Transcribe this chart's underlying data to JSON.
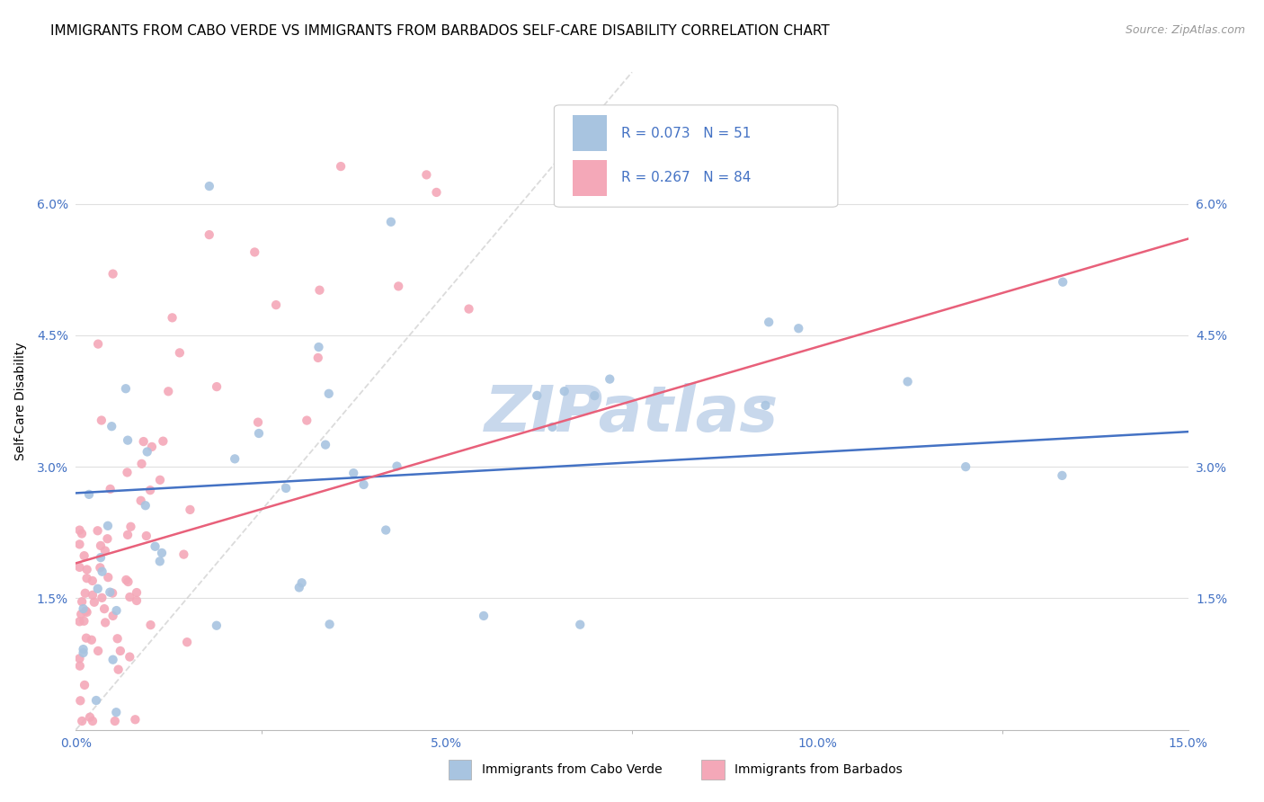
{
  "title": "IMMIGRANTS FROM CABO VERDE VS IMMIGRANTS FROM BARBADOS SELF-CARE DISABILITY CORRELATION CHART",
  "source": "Source: ZipAtlas.com",
  "ylabel": "Self-Care Disability",
  "xlim": [
    0,
    0.15
  ],
  "ylim": [
    0,
    0.075
  ],
  "cabo_verde_R": 0.073,
  "cabo_verde_N": 51,
  "barbados_R": 0.267,
  "barbados_N": 84,
  "cabo_verde_color": "#a8c4e0",
  "barbados_color": "#f4a8b8",
  "cabo_verde_line_color": "#4472c4",
  "barbados_line_color": "#e8607a",
  "diagonal_color": "#cccccc",
  "background_color": "#ffffff",
  "grid_color": "#e0e0e0",
  "tick_color": "#4472c4",
  "title_fontsize": 11,
  "label_fontsize": 10,
  "watermark_text": "ZIPatlas",
  "watermark_color": "#c8d8ec"
}
